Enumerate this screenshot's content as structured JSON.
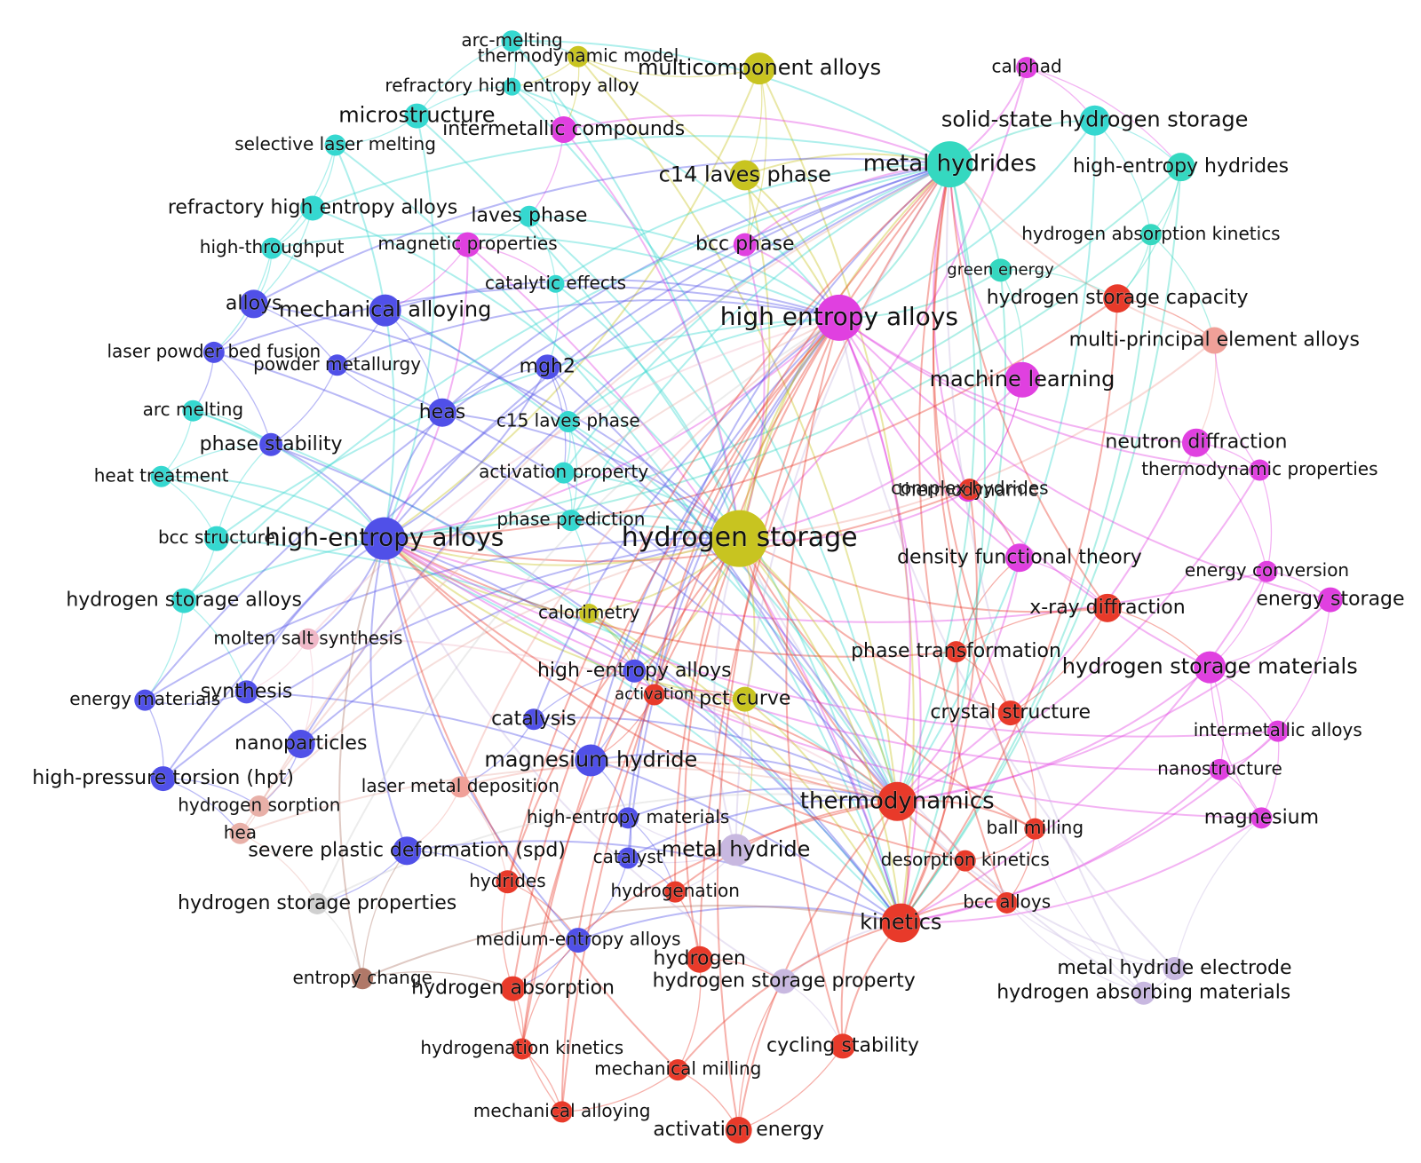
{
  "nodes": [
    {
      "label": "arc-melting",
      "color": "#35d8d0"
    },
    {
      "label": "thermodynamic model",
      "color": "#c8c420"
    },
    {
      "label": "multicomponent alloys",
      "color": "#c8c420"
    },
    {
      "label": "calphad",
      "color": "#e040e0"
    },
    {
      "label": "refractory high entropy alloy",
      "color": "#35d8d0"
    },
    {
      "label": "microstructure",
      "color": "#35d8d0"
    },
    {
      "label": "intermetallic compounds",
      "color": "#e040e0"
    },
    {
      "label": "solid-state hydrogen storage",
      "color": "#35d8d0"
    },
    {
      "label": "selective laser melting",
      "color": "#35d8d0"
    },
    {
      "label": "c14 laves phase",
      "color": "#c8c420"
    },
    {
      "label": "metal hydrides",
      "color": "#35d8c0"
    },
    {
      "label": "high-entropy hydrides",
      "color": "#35d8c0"
    },
    {
      "label": "refractory high entropy alloys",
      "color": "#35d8d0"
    },
    {
      "label": "laves phase",
      "color": "#35d8d0"
    },
    {
      "label": "magnetic properties",
      "color": "#e040e0"
    },
    {
      "label": "bcc phase",
      "color": "#e040e0"
    },
    {
      "label": "high-throughput",
      "color": "#35d8d0"
    },
    {
      "label": "hydrogen absorption kinetics",
      "color": "#35d8c0"
    },
    {
      "label": "catalytic effects",
      "color": "#35d8d0"
    },
    {
      "label": "green energy",
      "color": "#35d8c0"
    },
    {
      "label": "hydrogen storage capacity",
      "color": "#e83a2a"
    },
    {
      "label": "alloys",
      "color": "#5050e8"
    },
    {
      "label": "mechanical alloying",
      "color": "#5050e8"
    },
    {
      "label": "high entropy alloys",
      "color": "#e040e0"
    },
    {
      "label": "multi-principal element alloys",
      "color": "#f0a098"
    },
    {
      "label": "laser powder bed fusion",
      "color": "#5050e8"
    },
    {
      "label": "mgh2",
      "color": "#5050e8"
    },
    {
      "label": "machine learning",
      "color": "#e040e0"
    },
    {
      "label": "powder metallurgy",
      "color": "#5050e8"
    },
    {
      "label": "arc melting",
      "color": "#35d8d0"
    },
    {
      "label": "heas",
      "color": "#5050e8"
    },
    {
      "label": "c15 laves phase",
      "color": "#35d8d0"
    },
    {
      "label": "phase stability",
      "color": "#5050e8"
    },
    {
      "label": "thermodynamic",
      "color": "#e040e0"
    },
    {
      "label": "neutron diffraction",
      "color": "#e040e0"
    },
    {
      "label": "heat treatment",
      "color": "#35d8d0"
    },
    {
      "label": "activation property",
      "color": "#35d8d0"
    },
    {
      "label": "thermodynamic properties",
      "color": "#e040e0"
    },
    {
      "label": "complex hydrides",
      "color": "#e83a2a"
    },
    {
      "label": "phase prediction",
      "color": "#35d8d0"
    },
    {
      "label": "bcc structure",
      "color": "#35d8d0"
    },
    {
      "label": "high-entropy alloys",
      "color": "#5050e8"
    },
    {
      "label": "hydrogen storage",
      "color": "#c8c420"
    },
    {
      "label": "density functional theory",
      "color": "#e040e0"
    },
    {
      "label": "energy conversion",
      "color": "#e040e0"
    },
    {
      "label": "hydrogen storage alloys",
      "color": "#35d8d0"
    },
    {
      "label": "energy storage",
      "color": "#e040e0"
    },
    {
      "label": "calorimetry",
      "color": "#c8c420"
    },
    {
      "label": "x-ray diffraction",
      "color": "#e83a2a"
    },
    {
      "label": "molten salt synthesis",
      "color": "#f0b8c8"
    },
    {
      "label": "phase transformation",
      "color": "#e83a2a"
    },
    {
      "label": "high -entropy alloys",
      "color": "#5050e8"
    },
    {
      "label": "hydrogen storage materials",
      "color": "#e040e0"
    },
    {
      "label": "synthesis",
      "color": "#5050e8"
    },
    {
      "label": "energy materials",
      "color": "#5050e8"
    },
    {
      "label": "activation",
      "color": "#e83a2a"
    },
    {
      "label": "pct curve",
      "color": "#c8c420"
    },
    {
      "label": "crystal structure",
      "color": "#e83a2a"
    },
    {
      "label": "catalysis",
      "color": "#5050e8"
    },
    {
      "label": "intermetallic alloys",
      "color": "#e040e0"
    },
    {
      "label": "nanoparticles",
      "color": "#5050e8"
    },
    {
      "label": "magnesium hydride",
      "color": "#5050e8"
    },
    {
      "label": "nanostructure",
      "color": "#e040e0"
    },
    {
      "label": "high-pressure torsion (hpt)",
      "color": "#5050e8"
    },
    {
      "label": "laser metal deposition",
      "color": "#f0a098"
    },
    {
      "label": "thermodynamics",
      "color": "#e83a2a"
    },
    {
      "label": "hydrogen sorption",
      "color": "#e8b0a8"
    },
    {
      "label": "high-entropy materials",
      "color": "#5050e8"
    },
    {
      "label": "magnesium",
      "color": "#e040e0"
    },
    {
      "label": "ball milling",
      "color": "#e83a2a"
    },
    {
      "label": "hea",
      "color": "#e8b0a8"
    },
    {
      "label": "severe plastic deformation (spd)",
      "color": "#5050e8"
    },
    {
      "label": "metal hydride",
      "color": "#c8b8e0"
    },
    {
      "label": "catalyst",
      "color": "#5050e8"
    },
    {
      "label": "desorption kinetics",
      "color": "#e83a2a"
    },
    {
      "label": "hydrides",
      "color": "#e83a2a"
    },
    {
      "label": "hydrogenation",
      "color": "#e83a2a"
    },
    {
      "label": "kinetics",
      "color": "#e83a2a"
    },
    {
      "label": "bcc alloys",
      "color": "#e83a2a"
    },
    {
      "label": "hydrogen storage properties",
      "color": "#d0d0d0"
    },
    {
      "label": "medium-entropy alloys",
      "color": "#5050e8"
    },
    {
      "label": "hydrogen",
      "color": "#e83a2a"
    },
    {
      "label": "metal hydride electrode",
      "color": "#c8b8e0"
    },
    {
      "label": "entropy change",
      "color": "#b07868"
    },
    {
      "label": "hydrogen absorbing materials",
      "color": "#c8b8e0"
    },
    {
      "label": "hydrogen absorption",
      "color": "#e83a2a"
    },
    {
      "label": "hydrogen storage property",
      "color": "#c8b8e0"
    },
    {
      "label": "hydrogenation kinetics",
      "color": "#e83a2a"
    },
    {
      "label": "cycling stability",
      "color": "#e83a2a"
    },
    {
      "label": "mechanical milling",
      "color": "#e83a2a"
    },
    {
      "label": "mechanical alloying",
      "color": "#e83a2a"
    },
    {
      "label": "activation energy",
      "color": "#e83a2a"
    }
  ]
}
